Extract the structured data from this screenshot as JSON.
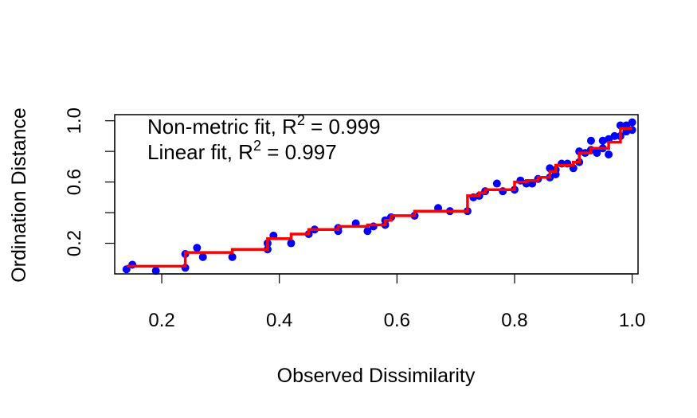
{
  "chart_data": {
    "type": "scatter",
    "xlabel": "Observed Dissimilarity",
    "ylabel": "Ordination Distance",
    "xlim": [
      0.12,
      1.01
    ],
    "ylim": [
      0.0,
      1.04
    ],
    "xticks": [
      0.2,
      0.4,
      0.6,
      0.8,
      1.0
    ],
    "xtick_labels": [
      "0.2",
      "0.4",
      "0.6",
      "0.8",
      "1.0"
    ],
    "yticks": [
      0.2,
      0.4,
      0.6,
      0.8,
      1.0
    ],
    "ytick_labels": [
      "0.2",
      "",
      "0.6",
      "",
      "1.0"
    ],
    "grid": false,
    "colors": {
      "points": "#0000ff",
      "step_line": "#ff0000",
      "axes": "#000000"
    },
    "annotations": [
      {
        "text": "Non-metric fit, R",
        "sup": "2",
        "value_text": " = 0.999"
      },
      {
        "text": "Linear fit, R",
        "sup": "2",
        "value_text": " = 0.997"
      }
    ],
    "series": [
      {
        "type": "scatter",
        "points": [
          [
            0.14,
            0.03
          ],
          [
            0.15,
            0.06
          ],
          [
            0.19,
            0.02
          ],
          [
            0.24,
            0.04
          ],
          [
            0.24,
            0.13
          ],
          [
            0.26,
            0.17
          ],
          [
            0.27,
            0.11
          ],
          [
            0.32,
            0.11
          ],
          [
            0.38,
            0.16
          ],
          [
            0.38,
            0.2
          ],
          [
            0.39,
            0.25
          ],
          [
            0.42,
            0.2
          ],
          [
            0.45,
            0.26
          ],
          [
            0.46,
            0.29
          ],
          [
            0.5,
            0.28
          ],
          [
            0.5,
            0.3
          ],
          [
            0.53,
            0.33
          ],
          [
            0.55,
            0.28
          ],
          [
            0.56,
            0.31
          ],
          [
            0.58,
            0.32
          ],
          [
            0.58,
            0.35
          ],
          [
            0.59,
            0.37
          ],
          [
            0.63,
            0.38
          ],
          [
            0.67,
            0.43
          ],
          [
            0.69,
            0.41
          ],
          [
            0.72,
            0.41
          ],
          [
            0.73,
            0.5
          ],
          [
            0.74,
            0.51
          ],
          [
            0.75,
            0.54
          ],
          [
            0.77,
            0.59
          ],
          [
            0.78,
            0.54
          ],
          [
            0.8,
            0.55
          ],
          [
            0.81,
            0.61
          ],
          [
            0.82,
            0.59
          ],
          [
            0.83,
            0.59
          ],
          [
            0.84,
            0.62
          ],
          [
            0.86,
            0.63
          ],
          [
            0.86,
            0.69
          ],
          [
            0.87,
            0.65
          ],
          [
            0.87,
            0.68
          ],
          [
            0.88,
            0.72
          ],
          [
            0.89,
            0.72
          ],
          [
            0.9,
            0.69
          ],
          [
            0.91,
            0.73
          ],
          [
            0.91,
            0.8
          ],
          [
            0.92,
            0.79
          ],
          [
            0.93,
            0.81
          ],
          [
            0.93,
            0.87
          ],
          [
            0.94,
            0.79
          ],
          [
            0.95,
            0.82
          ],
          [
            0.95,
            0.87
          ],
          [
            0.96,
            0.78
          ],
          [
            0.96,
            0.88
          ],
          [
            0.97,
            0.9
          ],
          [
            0.98,
            0.9
          ],
          [
            0.98,
            0.97
          ],
          [
            0.99,
            0.97
          ],
          [
            0.99,
            0.93
          ],
          [
            1.0,
            0.99
          ],
          [
            1.0,
            0.94
          ]
        ]
      },
      {
        "type": "step",
        "points": [
          [
            0.14,
            0.05
          ],
          [
            0.24,
            0.05
          ],
          [
            0.24,
            0.14
          ],
          [
            0.32,
            0.14
          ],
          [
            0.32,
            0.16
          ],
          [
            0.38,
            0.16
          ],
          [
            0.38,
            0.23
          ],
          [
            0.42,
            0.23
          ],
          [
            0.42,
            0.26
          ],
          [
            0.45,
            0.26
          ],
          [
            0.45,
            0.29
          ],
          [
            0.5,
            0.29
          ],
          [
            0.5,
            0.31
          ],
          [
            0.55,
            0.31
          ],
          [
            0.55,
            0.32
          ],
          [
            0.58,
            0.32
          ],
          [
            0.58,
            0.35
          ],
          [
            0.59,
            0.35
          ],
          [
            0.59,
            0.38
          ],
          [
            0.63,
            0.38
          ],
          [
            0.63,
            0.41
          ],
          [
            0.72,
            0.41
          ],
          [
            0.72,
            0.51
          ],
          [
            0.74,
            0.51
          ],
          [
            0.74,
            0.53
          ],
          [
            0.75,
            0.53
          ],
          [
            0.75,
            0.55
          ],
          [
            0.8,
            0.55
          ],
          [
            0.8,
            0.6
          ],
          [
            0.82,
            0.6
          ],
          [
            0.82,
            0.61
          ],
          [
            0.84,
            0.61
          ],
          [
            0.84,
            0.63
          ],
          [
            0.86,
            0.63
          ],
          [
            0.86,
            0.67
          ],
          [
            0.87,
            0.67
          ],
          [
            0.87,
            0.71
          ],
          [
            0.9,
            0.71
          ],
          [
            0.9,
            0.73
          ],
          [
            0.91,
            0.73
          ],
          [
            0.91,
            0.79
          ],
          [
            0.93,
            0.79
          ],
          [
            0.93,
            0.82
          ],
          [
            0.96,
            0.82
          ],
          [
            0.96,
            0.86
          ],
          [
            0.98,
            0.86
          ],
          [
            0.98,
            0.95
          ],
          [
            1.0,
            0.95
          ]
        ]
      }
    ]
  }
}
